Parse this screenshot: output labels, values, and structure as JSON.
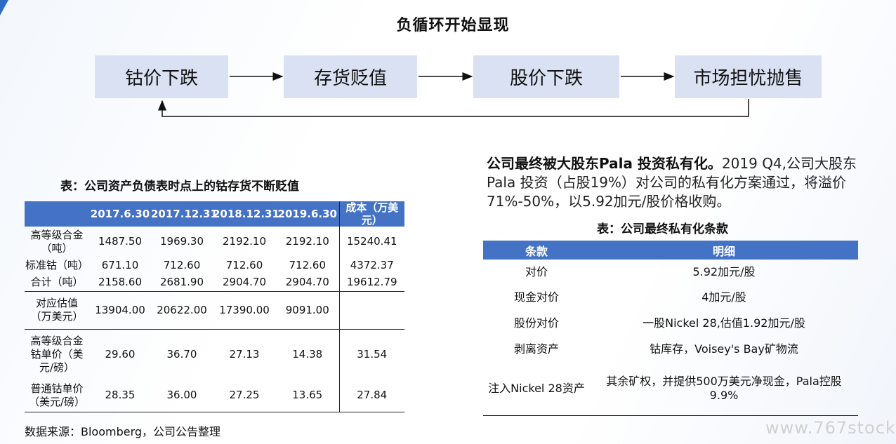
{
  "title": "负循环开始显现",
  "flow": {
    "box1": "钴价下跌",
    "box2": "存货贬值",
    "box3": "股价下跌",
    "box4": "市场担忧抛售"
  },
  "left_table": {
    "caption": "表：公司资产负债表时点上的钴存货不断贬值",
    "headers": [
      "",
      "2017.6.30",
      "2017.12.31",
      "2018.12.31",
      "2019.6.30",
      "成本（万美元）"
    ],
    "rows": [
      [
        "高等级合金（吨）",
        "1487.50",
        "1969.30",
        "2192.10",
        "2192.10",
        "15240.41"
      ],
      [
        "标准钴（吨）",
        "671.10",
        "712.60",
        "712.60",
        "712.60",
        "4372.37"
      ],
      [
        "合计（吨）",
        "2158.60",
        "2681.90",
        "2904.70",
        "2904.70",
        "19612.79"
      ],
      [
        "对应估值（万美元）",
        "13904.00",
        "20622.00",
        "17390.00",
        "9091.00",
        ""
      ],
      [
        "高等级合金钴单价（美元/磅）",
        "29.60",
        "36.70",
        "27.13",
        "14.38",
        "31.54"
      ],
      [
        "普通钴单价（美元/磅）",
        "28.35",
        "36.00",
        "27.25",
        "13.65",
        "27.84"
      ]
    ],
    "source": "数据来源：Bloomberg，公司公告整理"
  },
  "paragraph": {
    "bold": "公司最终被大股东Pala 投资私有化。",
    "text": "2019 Q4,公司大股东Pala 投资（占股19%）对公司的私有化方案通过，将溢价71%-50%，以5.92加元/股价格收购。"
  },
  "right_table": {
    "caption": "表：公司最终私有化条款",
    "headers": [
      "条款",
      "明细"
    ],
    "rows": [
      [
        "对价",
        "5.92加元/股"
      ],
      [
        "现金对价",
        "4加元/股"
      ],
      [
        "股份对价",
        "一股Nickel 28,估值1.92加元/股"
      ],
      [
        "剥离资产",
        "钴库存，Voisey's Bay矿物流"
      ],
      [
        "注入Nickel 28资产",
        "其余矿权，并提供500万美元净现金，Pala控股9.9%"
      ]
    ]
  },
  "watermark": "www.767stock",
  "colors": {
    "header_blue": "#4472c4",
    "flow_box": "#d9e1f2"
  }
}
